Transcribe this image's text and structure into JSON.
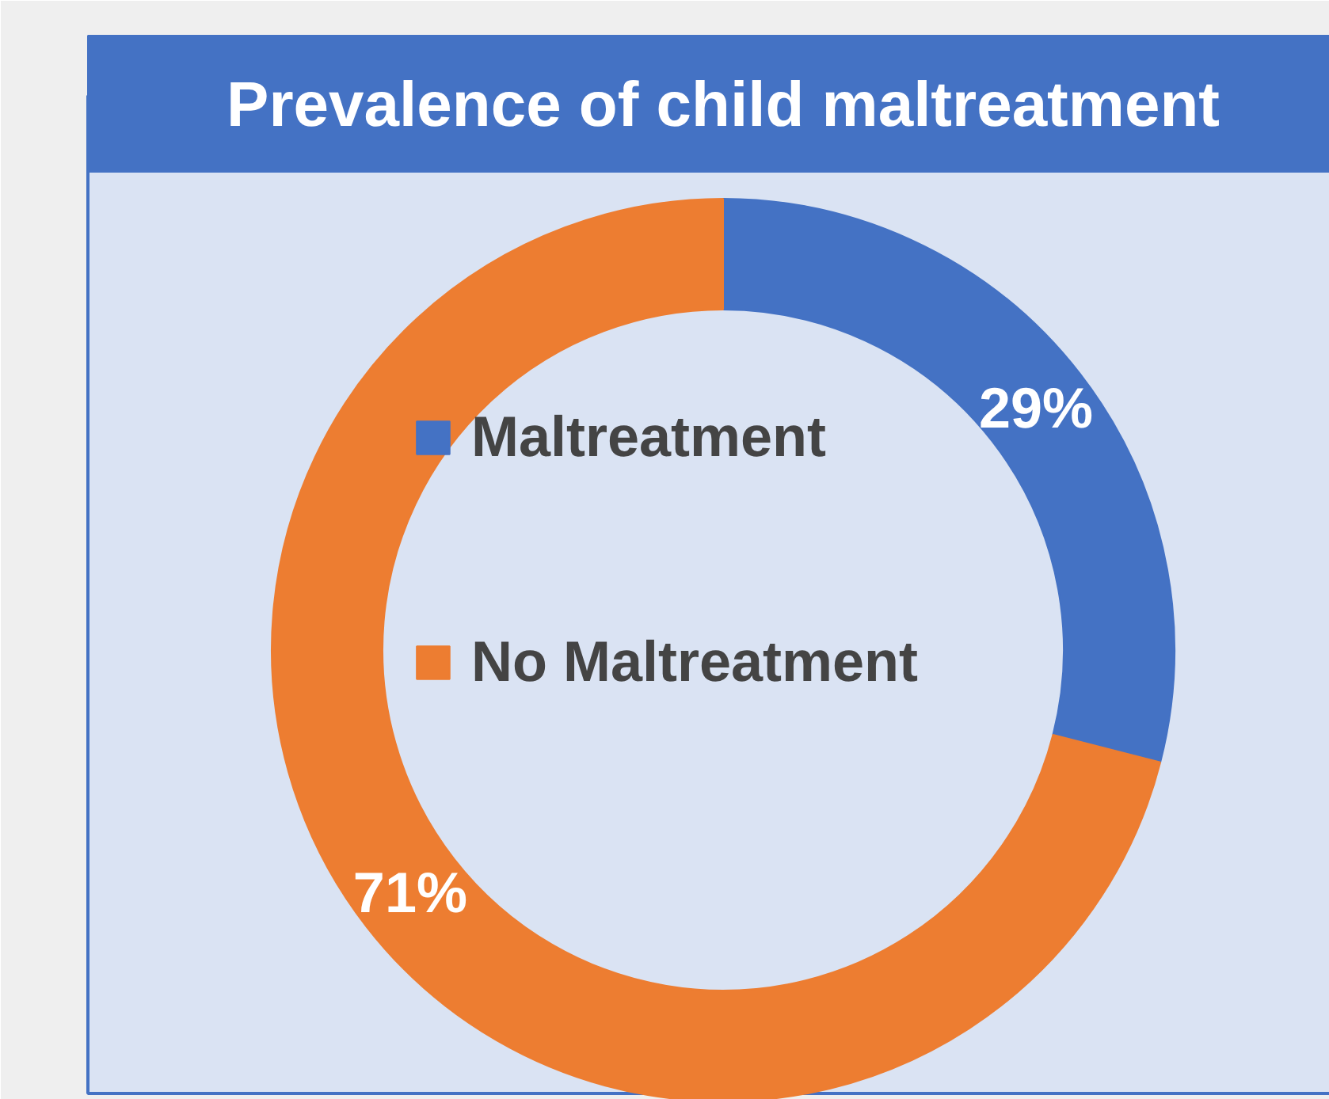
{
  "chart_data": {
    "type": "donut",
    "title": "Prevalence of child maltreatment",
    "categories": [
      "Maltreatment",
      "No Maltreatment"
    ],
    "values": [
      29,
      71
    ],
    "colors": [
      "#4472c4",
      "#ed7d31"
    ],
    "value_labels": [
      "29%",
      "71%"
    ],
    "legend": "center"
  }
}
